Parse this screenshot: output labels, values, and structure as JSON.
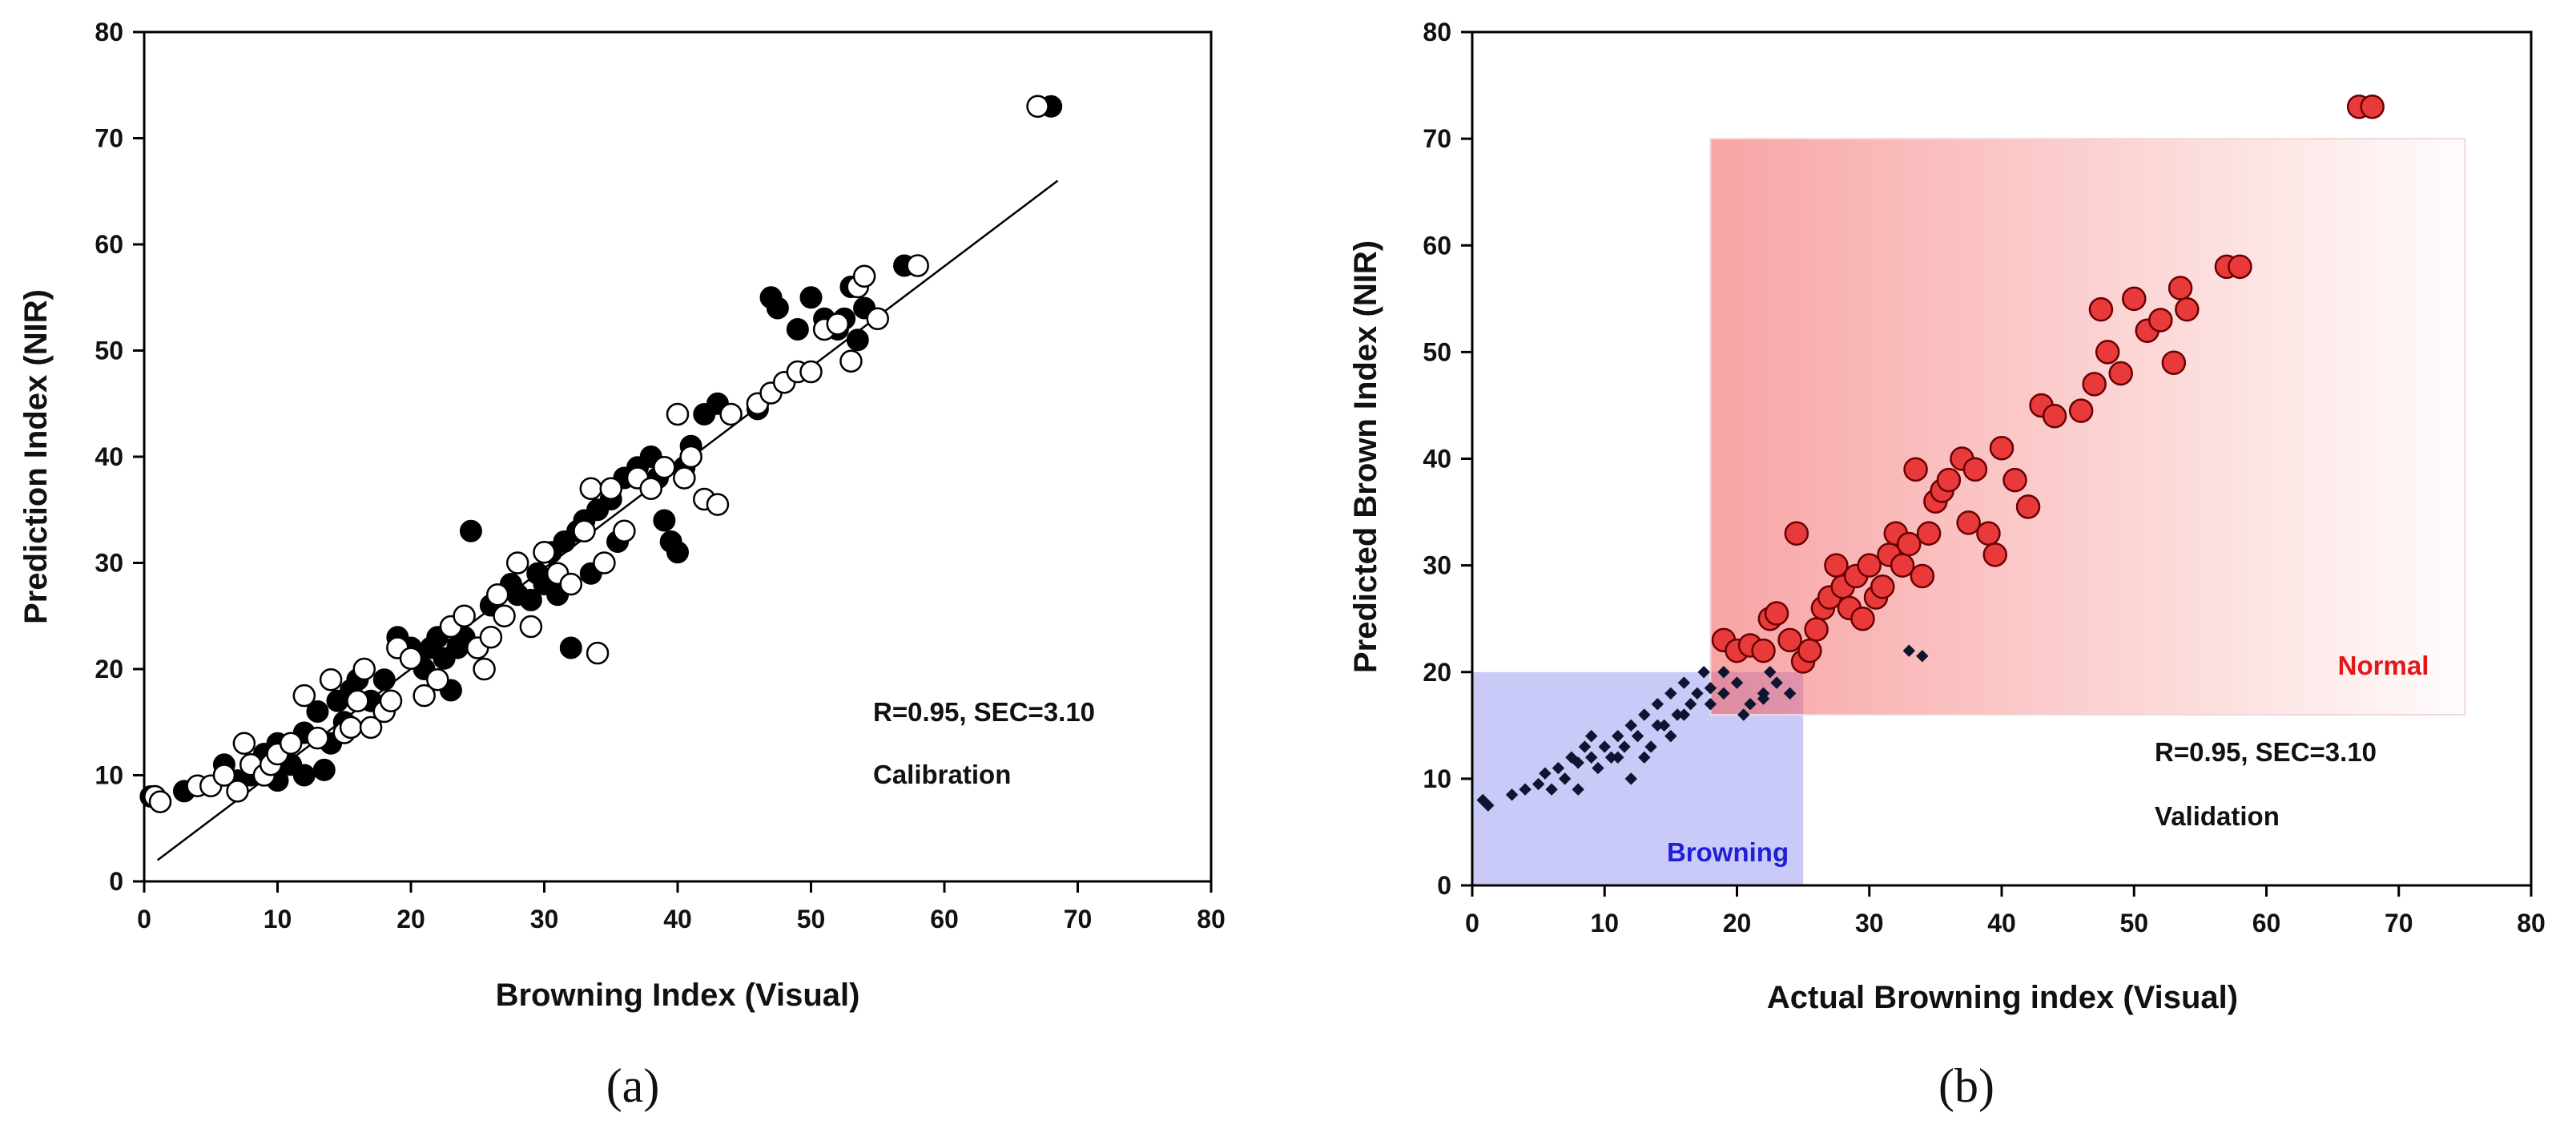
{
  "figure": {
    "panel_labels": [
      "(a)",
      "(b)"
    ]
  },
  "chart_data": [
    {
      "type": "scatter",
      "xlabel": "Browning Index (Visual)",
      "ylabel": "Prediction Index (NIR)",
      "xlim": [
        0,
        80
      ],
      "ylim": [
        0,
        80
      ],
      "xticks": [
        0,
        10,
        20,
        30,
        40,
        50,
        60,
        70,
        80
      ],
      "yticks": [
        0,
        10,
        20,
        30,
        40,
        50,
        60,
        70,
        80
      ],
      "grid": false,
      "annotations": [
        "R=0.95, SEC=3.10",
        "Calibration"
      ],
      "fit_line": {
        "x": [
          1,
          68.5
        ],
        "y": [
          2,
          66
        ]
      },
      "series": [
        {
          "marker": "filled-circle",
          "color": "#000000",
          "points": [
            [
              0.5,
              8
            ],
            [
              3,
              8.5
            ],
            [
              6,
              11
            ],
            [
              7,
              9.5
            ],
            [
              8,
              10
            ],
            [
              9,
              12
            ],
            [
              10,
              13
            ],
            [
              10,
              9.5
            ],
            [
              11,
              11
            ],
            [
              12,
              10
            ],
            [
              12,
              14
            ],
            [
              13,
              16
            ],
            [
              13.5,
              10.5
            ],
            [
              14,
              13
            ],
            [
              14.5,
              17
            ],
            [
              15,
              15
            ],
            [
              15.5,
              18
            ],
            [
              16,
              19
            ],
            [
              17,
              17
            ],
            [
              18,
              19
            ],
            [
              19,
              23
            ],
            [
              20,
              22
            ],
            [
              20.5,
              21
            ],
            [
              21,
              20
            ],
            [
              21.5,
              22
            ],
            [
              22,
              23
            ],
            [
              22.5,
              21
            ],
            [
              23,
              18
            ],
            [
              23.5,
              22
            ],
            [
              24,
              23
            ],
            [
              24.5,
              33
            ],
            [
              25,
              22
            ],
            [
              26,
              26
            ],
            [
              26.5,
              27
            ],
            [
              27,
              25
            ],
            [
              27.5,
              28
            ],
            [
              28,
              27
            ],
            [
              29,
              26.5
            ],
            [
              29.5,
              29
            ],
            [
              30,
              28
            ],
            [
              30.5,
              31
            ],
            [
              31,
              27
            ],
            [
              31.5,
              32
            ],
            [
              32,
              22
            ],
            [
              32.5,
              33
            ],
            [
              33,
              34
            ],
            [
              33.5,
              29
            ],
            [
              34,
              35
            ],
            [
              35,
              36
            ],
            [
              35.5,
              32
            ],
            [
              36,
              38
            ],
            [
              37,
              39
            ],
            [
              38,
              40
            ],
            [
              38.5,
              38
            ],
            [
              39,
              34
            ],
            [
              39.5,
              32
            ],
            [
              40,
              31
            ],
            [
              40.5,
              39
            ],
            [
              41,
              41
            ],
            [
              42,
              44
            ],
            [
              43,
              45
            ],
            [
              46,
              44.5
            ],
            [
              47,
              55
            ],
            [
              47.5,
              54
            ],
            [
              49,
              52
            ],
            [
              50,
              55
            ],
            [
              51,
              53
            ],
            [
              52,
              52
            ],
            [
              52.5,
              53
            ],
            [
              53,
              56
            ],
            [
              53.5,
              51
            ],
            [
              54,
              54
            ],
            [
              57,
              58
            ],
            [
              68,
              73
            ]
          ]
        },
        {
          "marker": "open-circle",
          "color": "#000000",
          "points": [
            [
              0.8,
              8
            ],
            [
              1.2,
              7.5
            ],
            [
              4,
              9
            ],
            [
              5,
              9
            ],
            [
              6,
              10
            ],
            [
              7,
              8.5
            ],
            [
              7.5,
              13
            ],
            [
              8,
              11
            ],
            [
              9,
              10
            ],
            [
              9.5,
              11
            ],
            [
              10,
              12
            ],
            [
              11,
              13
            ],
            [
              12,
              17.5
            ],
            [
              13,
              13.5
            ],
            [
              14,
              19
            ],
            [
              15,
              14
            ],
            [
              15.5,
              14.5
            ],
            [
              16,
              17
            ],
            [
              16.5,
              20
            ],
            [
              17,
              14.5
            ],
            [
              18,
              16
            ],
            [
              18.5,
              17
            ],
            [
              19,
              22
            ],
            [
              20,
              21
            ],
            [
              21,
              17.5
            ],
            [
              22,
              19
            ],
            [
              23,
              24
            ],
            [
              24,
              25
            ],
            [
              25,
              22
            ],
            [
              25.5,
              20
            ],
            [
              26,
              23
            ],
            [
              26.5,
              27
            ],
            [
              27,
              25
            ],
            [
              28,
              30
            ],
            [
              29,
              24
            ],
            [
              30,
              31
            ],
            [
              31,
              29
            ],
            [
              32,
              28
            ],
            [
              33,
              33
            ],
            [
              33.5,
              37
            ],
            [
              34,
              21.5
            ],
            [
              34.5,
              30
            ],
            [
              35,
              37
            ],
            [
              36,
              33
            ],
            [
              37,
              38
            ],
            [
              38,
              37
            ],
            [
              39,
              39
            ],
            [
              40,
              44
            ],
            [
              40.5,
              38
            ],
            [
              41,
              40
            ],
            [
              42,
              36
            ],
            [
              43,
              35.5
            ],
            [
              44,
              44
            ],
            [
              46,
              45
            ],
            [
              47,
              46
            ],
            [
              48,
              47
            ],
            [
              49,
              48
            ],
            [
              50,
              48
            ],
            [
              51,
              52
            ],
            [
              52,
              52.5
            ],
            [
              53,
              49
            ],
            [
              53.5,
              56
            ],
            [
              54,
              57
            ],
            [
              55,
              53
            ],
            [
              58,
              58
            ],
            [
              67,
              73
            ]
          ]
        }
      ]
    },
    {
      "type": "scatter",
      "xlabel": "Actual Browning index (Visual)",
      "ylabel": "Predicted Brown Index (NIR)",
      "xlim": [
        0,
        80
      ],
      "ylim": [
        0,
        80
      ],
      "xticks": [
        0,
        10,
        20,
        30,
        40,
        50,
        60,
        70,
        80
      ],
      "yticks": [
        0,
        10,
        20,
        30,
        40,
        50,
        60,
        70,
        80
      ],
      "grid": false,
      "annotations": [
        "R=0.95, SEC=3.10",
        "Validation"
      ],
      "regions": [
        {
          "label": "Browning",
          "x": [
            0,
            25
          ],
          "y": [
            0,
            20
          ],
          "color": "#b8b8f5",
          "label_color": "#1f1fd6"
        },
        {
          "label": "Normal",
          "x": [
            18,
            75
          ],
          "y": [
            16,
            70
          ],
          "color": "#f25a5a",
          "label_color": "#e01818"
        }
      ],
      "series": [
        {
          "marker": "diamond",
          "color": "#0d1530",
          "points": [
            [
              0.8,
              8
            ],
            [
              1.2,
              7.5
            ],
            [
              3,
              8.5
            ],
            [
              4,
              9
            ],
            [
              5,
              9.5
            ],
            [
              5.5,
              10.5
            ],
            [
              6,
              9
            ],
            [
              6.5,
              11
            ],
            [
              7,
              10
            ],
            [
              7.5,
              12
            ],
            [
              8,
              11.5
            ],
            [
              8.5,
              13
            ],
            [
              9,
              12
            ],
            [
              9.5,
              11
            ],
            [
              10,
              13
            ],
            [
              10.5,
              12
            ],
            [
              11,
              14
            ],
            [
              11.5,
              13
            ],
            [
              12,
              15
            ],
            [
              12.5,
              14
            ],
            [
              13,
              16
            ],
            [
              13.5,
              13
            ],
            [
              14,
              17
            ],
            [
              14.5,
              15
            ],
            [
              15,
              18
            ],
            [
              15.5,
              16
            ],
            [
              16,
              19
            ],
            [
              16.5,
              17
            ],
            [
              17,
              18
            ],
            [
              17.5,
              20
            ],
            [
              18,
              17
            ],
            [
              19,
              18
            ],
            [
              20,
              19
            ],
            [
              21,
              17
            ],
            [
              22,
              18
            ],
            [
              22.5,
              20
            ],
            [
              23,
              19
            ],
            [
              24,
              18
            ],
            [
              12,
              10
            ],
            [
              13,
              12
            ],
            [
              9,
              14
            ],
            [
              8,
              9
            ],
            [
              15,
              14
            ],
            [
              19,
              20
            ],
            [
              20.5,
              16
            ],
            [
              22,
              17.5
            ],
            [
              11,
              12
            ],
            [
              14,
              15
            ],
            [
              16,
              16
            ],
            [
              18,
              18.5
            ],
            [
              33,
              22
            ],
            [
              34,
              21.5
            ]
          ]
        },
        {
          "marker": "red-circle",
          "color": "#e83a3a",
          "points": [
            [
              19,
              23
            ],
            [
              20,
              22
            ],
            [
              21,
              22.5
            ],
            [
              22,
              22
            ],
            [
              22.5,
              25
            ],
            [
              23,
              25.5
            ],
            [
              24,
              23
            ],
            [
              24.5,
              33
            ],
            [
              25,
              21
            ],
            [
              25.5,
              22
            ],
            [
              26,
              24
            ],
            [
              26.5,
              26
            ],
            [
              27,
              27
            ],
            [
              27.5,
              30
            ],
            [
              28,
              28
            ],
            [
              28.5,
              26
            ],
            [
              29,
              29
            ],
            [
              29.5,
              25
            ],
            [
              30,
              30
            ],
            [
              30.5,
              27
            ],
            [
              31,
              28
            ],
            [
              31.5,
              31
            ],
            [
              32,
              33
            ],
            [
              32.5,
              30
            ],
            [
              33,
              32
            ],
            [
              33.5,
              39
            ],
            [
              34,
              29
            ],
            [
              34.5,
              33
            ],
            [
              35,
              36
            ],
            [
              35.5,
              37
            ],
            [
              36,
              38
            ],
            [
              37,
              40
            ],
            [
              37.5,
              34
            ],
            [
              38,
              39
            ],
            [
              39,
              33
            ],
            [
              39.5,
              31
            ],
            [
              40,
              41
            ],
            [
              41,
              38
            ],
            [
              42,
              35.5
            ],
            [
              43,
              45
            ],
            [
              44,
              44
            ],
            [
              46,
              44.5
            ],
            [
              47,
              47
            ],
            [
              47.5,
              54
            ],
            [
              48,
              50
            ],
            [
              49,
              48
            ],
            [
              50,
              55
            ],
            [
              51,
              52
            ],
            [
              52,
              53
            ],
            [
              53,
              49
            ],
            [
              53.5,
              56
            ],
            [
              54,
              54
            ],
            [
              57,
              58
            ],
            [
              58,
              58
            ],
            [
              67,
              73
            ],
            [
              68,
              73
            ]
          ]
        }
      ]
    }
  ]
}
